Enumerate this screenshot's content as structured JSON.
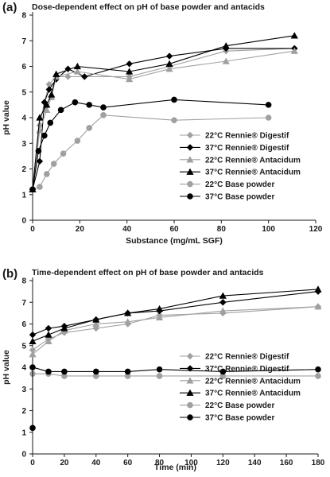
{
  "chart_data": [
    {
      "type": "line",
      "panel_label": "(a)",
      "title": "Dose-dependent effect on pH of base powder and antacids",
      "xlabel": "Substance (mg/mL SGF)",
      "ylabel": "pH value",
      "xlim": [
        0,
        120
      ],
      "ylim": [
        0,
        8
      ],
      "xticks": [
        0,
        20,
        40,
        60,
        80,
        100,
        120
      ],
      "yticks": [
        0,
        1,
        2,
        3,
        4,
        5,
        6,
        7,
        8
      ],
      "grid": false,
      "legend_position": "bottom-right",
      "series": [
        {
          "name": "22°C Rennie® Digestif",
          "color": "#a0a0a0",
          "marker": "diamond",
          "x": [
            0,
            3,
            5,
            7,
            10,
            15,
            22,
            41,
            58,
            82,
            111
          ],
          "y": [
            1.2,
            3.7,
            4.6,
            5.3,
            5.6,
            5.6,
            5.6,
            5.6,
            6.0,
            6.6,
            6.7
          ]
        },
        {
          "name": "37°C Rennie® Digestif",
          "color": "#000000",
          "marker": "diamond",
          "x": [
            0,
            3,
            5,
            7,
            10,
            15,
            22,
            41,
            58,
            82,
            111
          ],
          "y": [
            1.2,
            2.3,
            4.6,
            5.1,
            5.5,
            5.9,
            5.6,
            6.1,
            6.4,
            6.7,
            6.7
          ]
        },
        {
          "name": "22°C Rennie® Antacidum",
          "color": "#a0a0a0",
          "marker": "triangle",
          "x": [
            0,
            3,
            6,
            8,
            10,
            19,
            41,
            58,
            82,
            111
          ],
          "y": [
            1.2,
            3.5,
            4.3,
            4.8,
            5.6,
            5.8,
            5.5,
            5.9,
            6.2,
            6.6
          ]
        },
        {
          "name": "37°C Rennie® Antacidum",
          "color": "#000000",
          "marker": "triangle",
          "x": [
            0,
            3,
            6,
            8,
            10,
            19,
            41,
            58,
            82,
            111
          ],
          "y": [
            1.2,
            4.0,
            4.5,
            4.9,
            5.7,
            6.0,
            5.8,
            6.1,
            6.8,
            7.2
          ]
        },
        {
          "name": "22°C Base powder",
          "color": "#a0a0a0",
          "marker": "circle",
          "x": [
            0,
            3,
            6,
            9,
            13,
            19,
            24,
            30,
            60,
            100
          ],
          "y": [
            1.2,
            1.3,
            1.8,
            2.2,
            2.6,
            3.1,
            3.6,
            4.1,
            3.9,
            4.0
          ]
        },
        {
          "name": "37°C Base powder",
          "color": "#000000",
          "marker": "circle",
          "x": [
            0,
            2.5,
            5,
            7.5,
            12,
            18,
            24,
            30,
            60,
            100
          ],
          "y": [
            1.2,
            2.7,
            3.3,
            3.8,
            4.3,
            4.6,
            4.5,
            4.4,
            4.7,
            4.5
          ]
        }
      ]
    },
    {
      "type": "line",
      "panel_label": "(b)",
      "title": "Time-dependent effect on pH of base powder and antacids",
      "xlabel": "Time (min)",
      "ylabel": "pH value",
      "xlim": [
        0,
        180
      ],
      "ylim": [
        0,
        8
      ],
      "xticks": [
        0,
        20,
        40,
        60,
        80,
        100,
        120,
        140,
        160,
        180
      ],
      "yticks": [
        0,
        1,
        2,
        3,
        4,
        5,
        6,
        7,
        8
      ],
      "grid": false,
      "legend_position": "bottom-right",
      "series": [
        {
          "name": "22°C Rennie® Digestif",
          "color": "#a0a0a0",
          "marker": "diamond",
          "x": [
            0,
            10,
            20,
            40,
            60,
            80,
            120,
            180
          ],
          "y": [
            4.8,
            5.3,
            5.6,
            5.8,
            6.0,
            6.4,
            6.5,
            6.8
          ]
        },
        {
          "name": "37°C Rennie® Digestif",
          "color": "#000000",
          "marker": "diamond",
          "x": [
            0,
            10,
            20,
            40,
            60,
            80,
            120,
            180
          ],
          "y": [
            5.5,
            5.8,
            5.9,
            6.2,
            6.5,
            6.6,
            7.0,
            7.5
          ]
        },
        {
          "name": "22°C Rennie® Antacidum",
          "color": "#a0a0a0",
          "marker": "triangle",
          "x": [
            0,
            10,
            20,
            40,
            60,
            80,
            120,
            180
          ],
          "y": [
            4.6,
            5.2,
            5.7,
            6.0,
            6.1,
            6.3,
            6.6,
            6.8
          ]
        },
        {
          "name": "37°C Rennie® Antacidum",
          "color": "#000000",
          "marker": "triangle",
          "x": [
            0,
            10,
            20,
            40,
            60,
            80,
            120,
            180
          ],
          "y": [
            5.2,
            5.5,
            5.8,
            6.2,
            6.5,
            6.7,
            7.3,
            7.6
          ]
        },
        {
          "name": "22°C Base powder",
          "color": "#a0a0a0",
          "marker": "circle",
          "x": [
            0,
            10,
            20,
            40,
            60,
            80,
            120,
            180
          ],
          "y": [
            3.7,
            3.7,
            3.6,
            3.6,
            3.6,
            3.6,
            3.6,
            3.6
          ]
        },
        {
          "name": "37°C Base powder",
          "color": "#000000",
          "marker": "circle",
          "x": [
            0,
            0,
            10,
            20,
            40,
            60,
            80,
            120,
            180
          ],
          "y": [
            1.2,
            4.0,
            3.8,
            3.8,
            3.8,
            3.8,
            3.9,
            3.8,
            3.9
          ]
        }
      ]
    }
  ]
}
